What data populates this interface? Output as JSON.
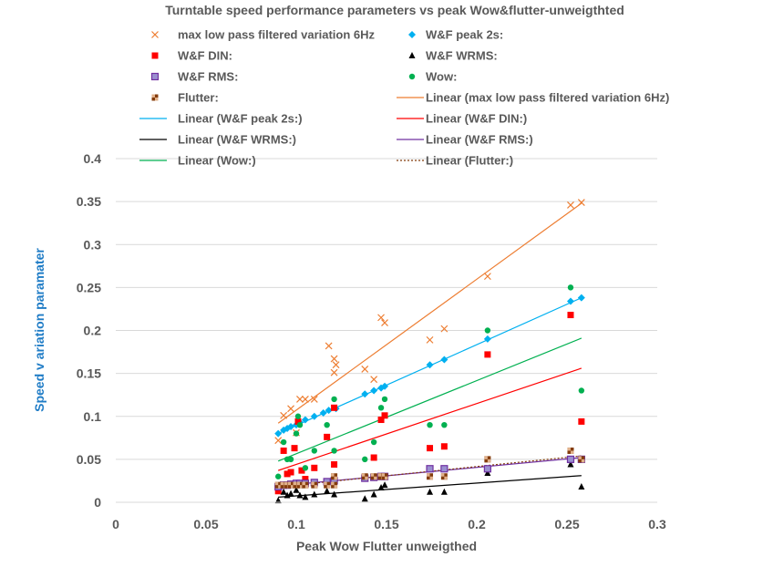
{
  "chart_data": {
    "type": "scatter",
    "title": "Turntable speed performance  parameters vs peak Wow&flutter-unweigthted",
    "xlabel": "Peak Wow Flutter unweigthed",
    "ylabel": "Speed v ariation paramater",
    "xlim": [
      0,
      0.3
    ],
    "ylim": [
      0,
      0.4
    ],
    "x_ticks": [
      0,
      0.05,
      0.1,
      0.15,
      0.2,
      0.25,
      0.3
    ],
    "y_ticks": [
      0,
      0.05,
      0.1,
      0.15,
      0.2,
      0.25,
      0.3,
      0.35,
      0.4
    ],
    "x_tick_labels": [
      "0",
      "0.05",
      "0.1",
      "0.15",
      "0.2",
      "0.25",
      "0.3"
    ],
    "y_tick_labels": [
      "0",
      "0.05",
      "0.1",
      "0.15",
      "0.2",
      "0.25",
      "0.3",
      "0.35",
      "0.4"
    ],
    "grid": "horizontal",
    "legend_position": "top",
    "series": [
      {
        "name": "max low pass filtered variation 6Hz",
        "marker": "x",
        "color": "#ed7d31",
        "x": [
          0.09,
          0.093,
          0.097,
          0.1,
          0.102,
          0.105,
          0.11,
          0.118,
          0.121,
          0.122,
          0.121,
          0.138,
          0.143,
          0.147,
          0.149,
          0.174,
          0.182,
          0.206,
          0.252,
          0.258
        ],
        "y": [
          0.072,
          0.101,
          0.109,
          0.081,
          0.12,
          0.12,
          0.12,
          0.182,
          0.167,
          0.16,
          0.151,
          0.155,
          0.143,
          0.215,
          0.209,
          0.189,
          0.202,
          0.263,
          0.346,
          0.349
        ]
      },
      {
        "name": "W&F peak 2s:",
        "marker": "diamond",
        "color": "#00b0f0",
        "x": [
          0.09,
          0.093,
          0.095,
          0.097,
          0.1,
          0.102,
          0.105,
          0.11,
          0.115,
          0.118,
          0.122,
          0.138,
          0.143,
          0.147,
          0.149,
          0.174,
          0.182,
          0.206,
          0.252,
          0.258
        ],
        "y": [
          0.08,
          0.084,
          0.086,
          0.088,
          0.09,
          0.093,
          0.096,
          0.1,
          0.104,
          0.107,
          0.109,
          0.126,
          0.13,
          0.133,
          0.135,
          0.16,
          0.166,
          0.19,
          0.234,
          0.238
        ]
      },
      {
        "name": "W&F DIN:",
        "marker": "square",
        "color": "#ff0000",
        "x": [
          0.09,
          0.093,
          0.095,
          0.097,
          0.099,
          0.101,
          0.103,
          0.105,
          0.11,
          0.117,
          0.121,
          0.121,
          0.143,
          0.147,
          0.149,
          0.174,
          0.182,
          0.206,
          0.252,
          0.258
        ],
        "y": [
          0.013,
          0.06,
          0.033,
          0.035,
          0.063,
          0.094,
          0.037,
          0.027,
          0.04,
          0.076,
          0.11,
          0.044,
          0.052,
          0.096,
          0.101,
          0.063,
          0.065,
          0.172,
          0.218,
          0.094
        ]
      },
      {
        "name": "W&F WRMS:",
        "marker": "triangle",
        "color": "#000000",
        "x": [
          0.09,
          0.093,
          0.095,
          0.097,
          0.1,
          0.102,
          0.105,
          0.11,
          0.117,
          0.121,
          0.138,
          0.143,
          0.147,
          0.149,
          0.174,
          0.182,
          0.206,
          0.252,
          0.258
        ],
        "y": [
          0.002,
          0.012,
          0.008,
          0.01,
          0.014,
          0.008,
          0.006,
          0.009,
          0.013,
          0.009,
          0.004,
          0.009,
          0.017,
          0.02,
          0.012,
          0.012,
          0.034,
          0.044,
          0.018
        ]
      },
      {
        "name": "W&F RMS:",
        "marker": "square-outline",
        "color": "#7030a0",
        "x": [
          0.09,
          0.093,
          0.095,
          0.097,
          0.1,
          0.102,
          0.105,
          0.11,
          0.117,
          0.121,
          0.138,
          0.143,
          0.147,
          0.149,
          0.174,
          0.182,
          0.206,
          0.252,
          0.258
        ],
        "y": [
          0.018,
          0.02,
          0.02,
          0.021,
          0.022,
          0.022,
          0.022,
          0.023,
          0.024,
          0.025,
          0.028,
          0.029,
          0.03,
          0.03,
          0.039,
          0.039,
          0.039,
          0.05,
          0.05
        ]
      },
      {
        "name": "Wow:",
        "marker": "circle",
        "color": "#00b050",
        "x": [
          0.09,
          0.093,
          0.095,
          0.097,
          0.1,
          0.101,
          0.102,
          0.105,
          0.11,
          0.117,
          0.121,
          0.121,
          0.138,
          0.143,
          0.147,
          0.149,
          0.174,
          0.182,
          0.206,
          0.252,
          0.258
        ],
        "y": [
          0.03,
          0.07,
          0.05,
          0.05,
          0.08,
          0.1,
          0.09,
          0.04,
          0.06,
          0.09,
          0.12,
          0.06,
          0.05,
          0.07,
          0.11,
          0.12,
          0.09,
          0.09,
          0.2,
          0.25,
          0.13
        ]
      },
      {
        "name": "Flutter:",
        "marker": "square-checker",
        "color": "#843c0c",
        "x": [
          0.09,
          0.093,
          0.095,
          0.097,
          0.1,
          0.102,
          0.105,
          0.11,
          0.117,
          0.121,
          0.121,
          0.138,
          0.143,
          0.147,
          0.149,
          0.174,
          0.182,
          0.206,
          0.252,
          0.258
        ],
        "y": [
          0.02,
          0.02,
          0.02,
          0.02,
          0.02,
          0.02,
          0.02,
          0.02,
          0.02,
          0.02,
          0.03,
          0.03,
          0.03,
          0.03,
          0.03,
          0.03,
          0.03,
          0.05,
          0.06,
          0.05
        ]
      }
    ],
    "trendlines": [
      {
        "name": "Linear (max low pass filtered variation 6Hz)",
        "color": "#ed7d31",
        "dash": "solid",
        "x": [
          0.09,
          0.258
        ],
        "y": [
          0.092,
          0.348
        ]
      },
      {
        "name": "Linear (W&F peak 2s:)",
        "color": "#00b0f0",
        "dash": "solid",
        "x": [
          0.09,
          0.258
        ],
        "y": [
          0.08,
          0.238
        ]
      },
      {
        "name": "Linear (W&F DIN:)",
        "color": "#ff0000",
        "dash": "solid",
        "x": [
          0.09,
          0.258
        ],
        "y": [
          0.037,
          0.156
        ]
      },
      {
        "name": "Linear (W&F WRMS:)",
        "color": "#000000",
        "dash": "solid",
        "x": [
          0.09,
          0.258
        ],
        "y": [
          0.006,
          0.031
        ]
      },
      {
        "name": "Linear (W&F RMS:)",
        "color": "#7030a0",
        "dash": "solid",
        "x": [
          0.09,
          0.258
        ],
        "y": [
          0.019,
          0.052
        ]
      },
      {
        "name": "Linear (Wow:)",
        "color": "#00b050",
        "dash": "solid",
        "x": [
          0.09,
          0.258
        ],
        "y": [
          0.048,
          0.191
        ]
      },
      {
        "name": "Linear (Flutter:)",
        "color": "#843c0c",
        "dash": "dotted",
        "x": [
          0.09,
          0.258
        ],
        "y": [
          0.018,
          0.054
        ]
      }
    ]
  }
}
